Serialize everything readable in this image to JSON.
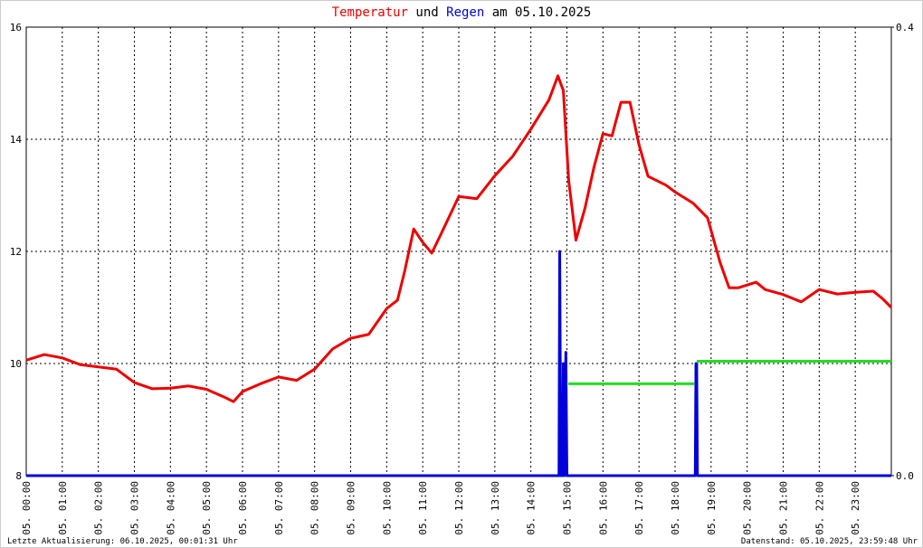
{
  "chart_data": {
    "type": "line",
    "title_parts": [
      "und",
      "am 05.10.2025"
    ],
    "xlim": [
      0,
      24
    ],
    "xticks": [
      {
        "value": 0,
        "label": "05. 00:00"
      },
      {
        "value": 1,
        "label": "05. 01:00"
      },
      {
        "value": 2,
        "label": "05. 02:00"
      },
      {
        "value": 3,
        "label": "05. 03:00"
      },
      {
        "value": 4,
        "label": "05. 04:00"
      },
      {
        "value": 5,
        "label": "05. 05:00"
      },
      {
        "value": 6,
        "label": "05. 06:00"
      },
      {
        "value": 7,
        "label": "05. 07:00"
      },
      {
        "value": 8,
        "label": "05. 08:00"
      },
      {
        "value": 9,
        "label": "05. 09:00"
      },
      {
        "value": 10,
        "label": "05. 10:00"
      },
      {
        "value": 11,
        "label": "05. 11:00"
      },
      {
        "value": 12,
        "label": "05. 12:00"
      },
      {
        "value": 13,
        "label": "05. 13:00"
      },
      {
        "value": 14,
        "label": "05. 14:00"
      },
      {
        "value": 15,
        "label": "05. 15:00"
      },
      {
        "value": 16,
        "label": "05. 16:00"
      },
      {
        "value": 17,
        "label": "05. 17:00"
      },
      {
        "value": 18,
        "label": "05. 18:00"
      },
      {
        "value": 19,
        "label": "05. 19:00"
      },
      {
        "value": 20,
        "label": "05. 20:00"
      },
      {
        "value": 21,
        "label": "05. 21:00"
      },
      {
        "value": 22,
        "label": "05. 22:00"
      },
      {
        "value": 23,
        "label": "05. 23:00"
      }
    ],
    "ylim": [
      8,
      16
    ],
    "yticks": [
      8,
      10,
      12,
      14,
      16
    ],
    "y2lim": [
      0,
      0.4
    ],
    "y2ticks": [
      {
        "value": 0,
        "label": "0.0"
      },
      {
        "value": 0.4,
        "label": "0.4"
      }
    ],
    "grid": true,
    "series": [
      {
        "name": "Temperatur",
        "color": "#ee0000",
        "x": [
          0,
          0.5,
          1,
          1.5,
          2,
          2.5,
          3,
          3.5,
          4,
          4.5,
          5,
          5.5,
          5.75,
          6,
          6.5,
          7,
          7.5,
          8,
          8.5,
          9,
          9.5,
          10,
          10.3,
          10.5,
          10.75,
          11,
          11.25,
          11.5,
          12,
          12.5,
          13,
          13.5,
          14,
          14.5,
          14.75,
          14.9,
          15.05,
          15.25,
          15.5,
          15.75,
          16,
          16.25,
          16.5,
          16.75,
          17,
          17.25,
          17.75,
          18,
          18.5,
          18.9,
          19.25,
          19.5,
          19.75,
          20.25,
          20.5,
          21,
          21.5,
          22,
          22.5,
          23,
          23.5,
          23.75,
          24
        ],
        "values": [
          10.06,
          10.16,
          10.1,
          9.98,
          9.94,
          9.9,
          9.66,
          9.55,
          9.56,
          9.6,
          9.54,
          9.4,
          9.32,
          9.5,
          9.64,
          9.76,
          9.7,
          9.9,
          10.26,
          10.45,
          10.52,
          10.98,
          11.13,
          11.65,
          12.4,
          12.16,
          11.97,
          12.3,
          12.98,
          12.94,
          13.35,
          13.7,
          14.18,
          14.7,
          15.13,
          14.87,
          13.26,
          12.2,
          12.77,
          13.5,
          14.1,
          14.06,
          14.66,
          14.66,
          13.9,
          13.34,
          13.18,
          13.06,
          12.86,
          12.6,
          11.8,
          11.35,
          11.35,
          11.45,
          11.32,
          11.23,
          11.1,
          11.32,
          11.24,
          11.27,
          11.29,
          11.16,
          11.0
        ]
      },
      {
        "name": "Regen",
        "color": "#0000dd",
        "axis": "y2",
        "x": [
          0,
          14.78,
          14.8,
          14.83,
          14.88,
          14.9,
          14.93,
          14.97,
          15.0,
          15.03,
          18.56,
          18.58,
          18.6,
          18.62,
          24
        ],
        "values": [
          0,
          0,
          0.2,
          0,
          0,
          0.1,
          0,
          0.11,
          0,
          0,
          0,
          0.1,
          0.1,
          0,
          0
        ]
      },
      {
        "color": "#22dd22",
        "axis": "y2",
        "x": [
          15.04,
          18.53,
          18.57,
          18.6,
          24
        ],
        "values": [
          0.082,
          0.082,
          null,
          0.102,
          0.102
        ]
      }
    ],
    "footer_left": "Letzte Aktualisierung: 06.10.2025, 00:01:31 Uhr",
    "footer_right": "Datenstand: 05.10.2025, 23:59:48 Uhr"
  }
}
